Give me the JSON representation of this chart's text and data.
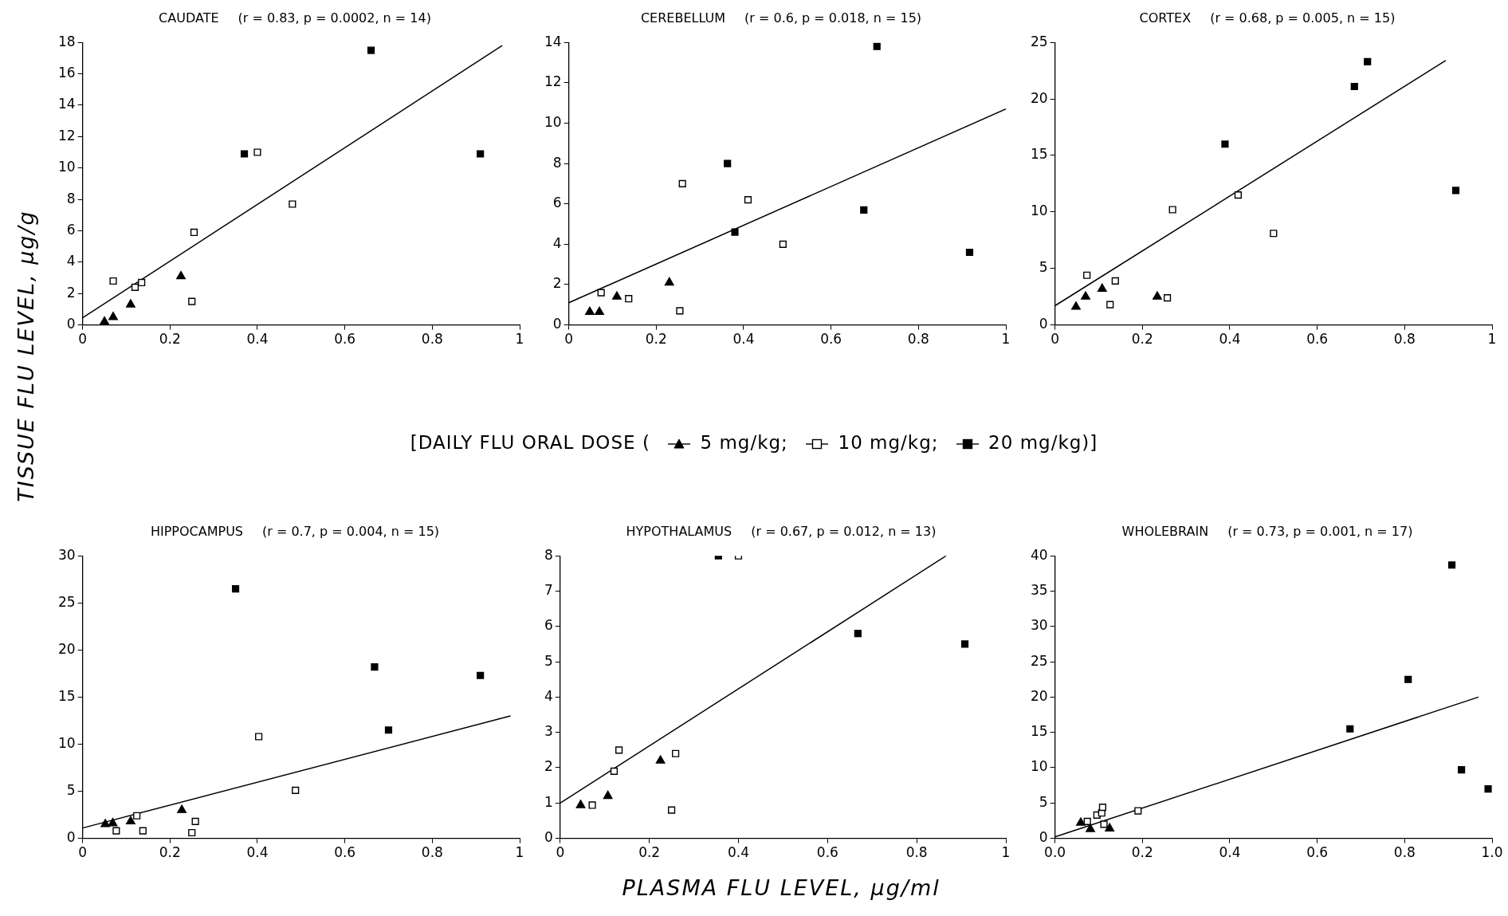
{
  "chart_data": [
    {
      "type": "scatter",
      "title": "CAUDATE",
      "subtitle": "(r = 0.83, p = 0.0002, n = 14)",
      "ylabel": "TISSUE FLU LEVEL, µg/g",
      "legend": "bottom",
      "legend_title": "[DAILY FLU ORAL DOSE (",
      "xlim": [
        0,
        1
      ],
      "ylim": [
        0,
        18
      ],
      "xticks": [
        0,
        0.2,
        0.4,
        0.6,
        0.8,
        1
      ],
      "yticks": [
        0,
        2,
        4,
        6,
        8,
        10,
        12,
        14,
        16,
        18
      ],
      "series": [
        {
          "name": "5 mg/kg;",
          "marker": "triangle",
          "color": "#000000",
          "x": [
            0.05,
            0.07,
            0.11,
            0.225
          ],
          "values": [
            0.2,
            0.5,
            1.3,
            3.1
          ]
        },
        {
          "name": "10 mg/kg;",
          "marker": "square",
          "color": "#ffffff",
          "x": [
            0.07,
            0.12,
            0.135,
            0.25,
            0.255,
            0.4,
            0.48
          ],
          "values": [
            2.8,
            2.4,
            2.7,
            1.5,
            5.9,
            11,
            7.7
          ]
        },
        {
          "name": "20 mg/kg)]",
          "marker": "square",
          "color": "#000000",
          "x": [
            0.37,
            0.66,
            0.91
          ],
          "values": [
            10.9,
            17.5,
            10.9
          ]
        },
        {
          "type": "line",
          "marker": "none",
          "color": "#000000",
          "x": [
            0,
            0.96
          ],
          "values": [
            0.45,
            17.8
          ]
        }
      ]
    },
    {
      "type": "scatter",
      "title": "CEREBELLUM",
      "subtitle": "(r = 0.6, p = 0.018, n = 15)",
      "xlim": [
        0,
        1
      ],
      "ylim": [
        0,
        14
      ],
      "xticks": [
        0,
        0.2,
        0.4,
        0.6,
        0.8,
        1
      ],
      "yticks": [
        0,
        2,
        4,
        6,
        8,
        10,
        12,
        14
      ],
      "series": [
        {
          "marker": "triangle",
          "color": "#000000",
          "x": [
            0.048,
            0.07,
            0.11,
            0.23
          ],
          "values": [
            0.64,
            0.64,
            1.4,
            2.1
          ]
        },
        {
          "marker": "square",
          "color": "#ffffff",
          "x": [
            0.074,
            0.137,
            0.254,
            0.26,
            0.41,
            0.49
          ],
          "values": [
            1.6,
            1.3,
            0.7,
            7,
            6.2,
            4
          ]
        },
        {
          "marker": "square",
          "color": "#000000",
          "x": [
            0.363,
            0.38,
            0.675,
            0.705,
            0.917
          ],
          "values": [
            8,
            4.6,
            5.7,
            13.8,
            3.6
          ]
        },
        {
          "type": "line",
          "marker": "none",
          "color": "#000000",
          "x": [
            0,
            1
          ],
          "values": [
            1.1,
            10.7
          ]
        }
      ]
    },
    {
      "type": "scatter",
      "title": "CORTEX",
      "subtitle": "(r = 0.68, p = 0.005, n = 15)",
      "xlim": [
        0,
        1
      ],
      "ylim": [
        0,
        25
      ],
      "xticks": [
        0,
        0.2,
        0.4,
        0.6,
        0.8,
        1
      ],
      "yticks": [
        0,
        5,
        10,
        15,
        20,
        25
      ],
      "series": [
        {
          "marker": "triangle",
          "color": "#000000",
          "x": [
            0.048,
            0.07,
            0.108,
            0.234
          ],
          "values": [
            1.6,
            2.5,
            3.2,
            2.5
          ]
        },
        {
          "marker": "square",
          "color": "#ffffff",
          "x": [
            0.073,
            0.126,
            0.138,
            0.257,
            0.269,
            0.419,
            0.5
          ],
          "values": [
            4.4,
            1.8,
            3.9,
            2.4,
            10.2,
            11.5,
            8.1
          ]
        },
        {
          "marker": "square",
          "color": "#000000",
          "x": [
            0.389,
            0.685,
            0.715,
            0.917
          ],
          "values": [
            16,
            21.1,
            23.3,
            11.9
          ]
        },
        {
          "type": "line",
          "marker": "none",
          "color": "#000000",
          "x": [
            0,
            0.894
          ],
          "values": [
            1.7,
            23.4
          ]
        }
      ]
    },
    {
      "type": "scatter",
      "title": "HIPPOCAMPUS",
      "subtitle": "(r = 0.7, p = 0.004, n = 15)",
      "xlim": [
        0,
        1
      ],
      "ylim": [
        0,
        30
      ],
      "xticks": [
        0,
        0.2,
        0.4,
        0.6,
        0.8,
        1
      ],
      "yticks": [
        0,
        5,
        10,
        15,
        20,
        25,
        30
      ],
      "series": [
        {
          "marker": "triangle",
          "color": "#000000",
          "x": [
            0.052,
            0.069,
            0.11,
            0.227
          ],
          "values": [
            1.5,
            1.6,
            1.8,
            3
          ]
        },
        {
          "marker": "square",
          "color": "#ffffff",
          "x": [
            0.077,
            0.124,
            0.138,
            0.25,
            0.258,
            0.403,
            0.487
          ],
          "values": [
            0.8,
            2.4,
            0.8,
            0.6,
            1.8,
            10.8,
            5.1
          ]
        },
        {
          "marker": "square",
          "color": "#000000",
          "x": [
            0.35,
            0.668,
            0.7,
            0.91
          ],
          "values": [
            26.5,
            18.2,
            11.5,
            17.3
          ]
        },
        {
          "type": "line",
          "marker": "none",
          "color": "#000000",
          "x": [
            0,
            0.979
          ],
          "values": [
            1.1,
            13
          ]
        }
      ]
    },
    {
      "type": "scatter",
      "title": "HYPOTHALAMUS",
      "subtitle": "(r = 0.67, p = 0.012, n = 13)",
      "xlabel": "PLASMA FLU LEVEL, µg/ml",
      "xlim": [
        0,
        1
      ],
      "ylim": [
        0,
        8
      ],
      "xticks": [
        0,
        0.2,
        0.4,
        0.6,
        0.8,
        1
      ],
      "yticks": [
        0,
        1,
        2,
        3,
        4,
        5,
        6,
        7,
        8
      ],
      "series": [
        {
          "marker": "triangle",
          "color": "#000000",
          "x": [
            0.046,
            0.107,
            0.225
          ],
          "values": [
            0.94,
            1.2,
            2.2
          ]
        },
        {
          "marker": "square",
          "color": "#ffffff",
          "x": [
            0.072,
            0.121,
            0.132,
            0.25,
            0.259,
            0.4
          ],
          "values": [
            0.94,
            1.9,
            2.5,
            0.8,
            2.4,
            8
          ]
        },
        {
          "marker": "square",
          "color": "#000000",
          "x": [
            0.355,
            0.668,
            0.908
          ],
          "values": [
            8,
            5.8,
            5.5
          ]
        },
        {
          "type": "line",
          "marker": "none",
          "color": "#000000",
          "x": [
            0,
            0.866
          ],
          "values": [
            1,
            8
          ]
        }
      ]
    },
    {
      "type": "scatter",
      "title": "WHOLEBRAIN",
      "subtitle": "(r = 0.73, p = 0.001, n = 17)",
      "xlim": [
        0,
        1
      ],
      "ylim": [
        0,
        40
      ],
      "xticks": [
        {
          "value": 0,
          "label": "0.0"
        },
        0.2,
        0.4,
        0.6,
        0.8,
        {
          "value": 1,
          "label": "1.0"
        }
      ],
      "yticks": [
        0,
        5,
        10,
        15,
        20,
        25,
        30,
        35,
        40
      ],
      "series": [
        {
          "marker": "triangle",
          "color": "#000000",
          "x": [
            0.059,
            0.081,
            0.125
          ],
          "values": [
            2.2,
            1.3,
            1.4
          ]
        },
        {
          "marker": "square",
          "color": "#ffffff",
          "x": [
            0.074,
            0.096,
            0.107,
            0.109,
            0.112,
            0.19
          ],
          "values": [
            2.4,
            3.3,
            3.6,
            4.4,
            2,
            3.9
          ]
        },
        {
          "marker": "square",
          "color": "#000000",
          "x": [
            0.675,
            0.808,
            0.908,
            0.93,
            0.991
          ],
          "values": [
            15.5,
            22.5,
            38.7,
            9.7,
            7
          ]
        },
        {
          "type": "line",
          "marker": "none",
          "color": "#000000",
          "x": [
            0,
            0.969
          ],
          "values": [
            0.2,
            20
          ]
        }
      ]
    }
  ]
}
